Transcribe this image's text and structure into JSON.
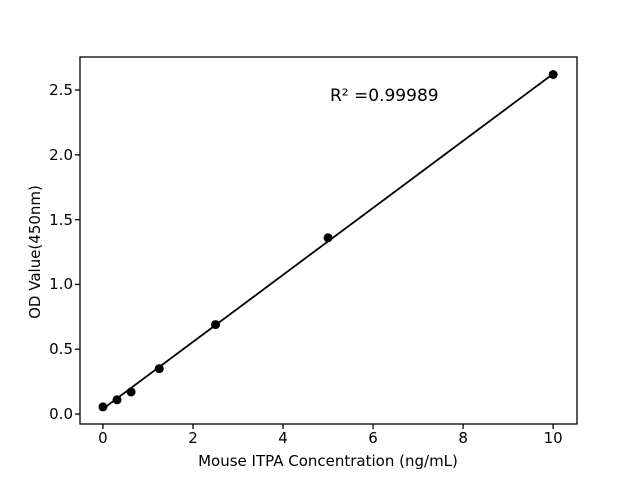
{
  "figure": {
    "background": "#ffffff",
    "text_color": "#000000"
  },
  "chart_data": {
    "type": "scatter",
    "title": "",
    "xlabel": "Mouse ITPA Concentration (ng/mL)",
    "ylabel": "OD Value(450nm)",
    "annotation": "R² =0.99989",
    "x": [
      0,
      0.3125,
      0.625,
      1.25,
      2.5,
      5,
      10
    ],
    "y": [
      0.055,
      0.11,
      0.17,
      0.35,
      0.69,
      1.36,
      2.62
    ],
    "fit_line": {
      "slope": 0.2585,
      "intercept": 0.04,
      "x_start": 0,
      "x_end": 10
    },
    "xlim": [
      -0.51,
      10.53
    ],
    "ylim": [
      -0.077,
      2.755
    ],
    "xticks": {
      "values": [
        0,
        2,
        4,
        6,
        8,
        10
      ],
      "labels": [
        "0",
        "2",
        "4",
        "6",
        "8",
        "10"
      ]
    },
    "yticks": {
      "values": [
        0,
        0.5,
        1.0,
        1.5,
        2.0,
        2.5
      ],
      "labels": [
        "0.0",
        "0.5",
        "1.0",
        "1.5",
        "2.0",
        "2.5"
      ]
    },
    "grid": false,
    "legend": "none",
    "frame": "box",
    "marker_color": "#000000",
    "line_color": "#000000",
    "axis_color": "#000000"
  }
}
